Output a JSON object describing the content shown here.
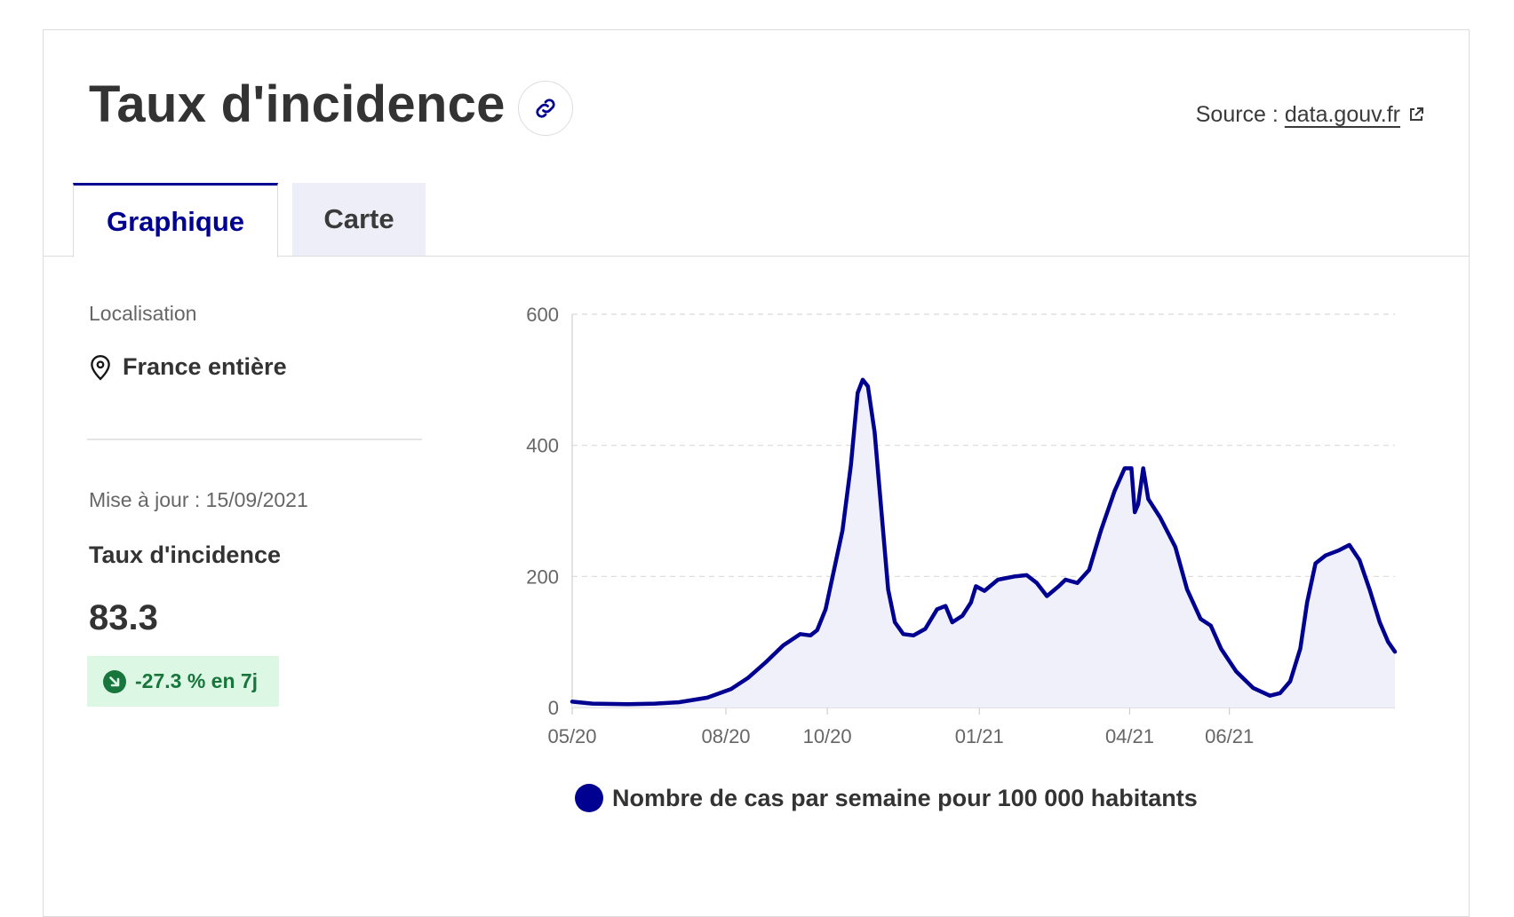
{
  "header": {
    "title": "Taux d'incidence",
    "source_label": "Source :",
    "source_link": "data.gouv.fr"
  },
  "tabs": [
    {
      "label": "Graphique",
      "active": true
    },
    {
      "label": "Carte",
      "active": false
    }
  ],
  "sidebar": {
    "location_label": "Localisation",
    "location_value": "France entière",
    "update_text": "Mise à jour : 15/09/2021",
    "indicator_label": "Taux d'incidence",
    "indicator_value": "83.3",
    "trend_text": "-27.3 % en 7j"
  },
  "colors": {
    "accent": "#000091",
    "trend_bg": "#dcf7e3",
    "trend_fg": "#18753c"
  },
  "chart_data": {
    "type": "line",
    "xlabel": "",
    "ylabel": "",
    "ylim": [
      0,
      600
    ],
    "yticks": [
      0,
      200,
      400,
      600
    ],
    "xticks": [
      "05/20",
      "08/20",
      "10/20",
      "01/21",
      "04/21",
      "06/21"
    ],
    "x_range": [
      "2020-05-13",
      "2021-09-12"
    ],
    "grid": true,
    "legend_position": "bottom",
    "series": [
      {
        "name": "Nombre de cas par semaine pour 100 000 habitants",
        "color": "#000091",
        "points": [
          [
            "2020-05-13",
            9
          ],
          [
            "2020-05-25",
            6
          ],
          [
            "2020-06-15",
            5
          ],
          [
            "2020-07-01",
            6
          ],
          [
            "2020-07-15",
            8
          ],
          [
            "2020-08-01",
            15
          ],
          [
            "2020-08-15",
            28
          ],
          [
            "2020-08-25",
            45
          ],
          [
            "2020-09-05",
            70
          ],
          [
            "2020-09-15",
            95
          ],
          [
            "2020-09-25",
            112
          ],
          [
            "2020-10-01",
            110
          ],
          [
            "2020-10-05",
            118
          ],
          [
            "2020-10-10",
            150
          ],
          [
            "2020-10-15",
            210
          ],
          [
            "2020-10-20",
            270
          ],
          [
            "2020-10-25",
            370
          ],
          [
            "2020-10-29",
            480
          ],
          [
            "2020-11-01",
            500
          ],
          [
            "2020-11-04",
            490
          ],
          [
            "2020-11-08",
            420
          ],
          [
            "2020-11-12",
            300
          ],
          [
            "2020-11-16",
            180
          ],
          [
            "2020-11-20",
            130
          ],
          [
            "2020-11-25",
            112
          ],
          [
            "2020-12-01",
            110
          ],
          [
            "2020-12-08",
            120
          ],
          [
            "2020-12-15",
            150
          ],
          [
            "2020-12-20",
            155
          ],
          [
            "2020-12-24",
            130
          ],
          [
            "2020-12-30",
            140
          ],
          [
            "2021-01-04",
            160
          ],
          [
            "2021-01-07",
            185
          ],
          [
            "2021-01-12",
            178
          ],
          [
            "2021-01-20",
            195
          ],
          [
            "2021-01-30",
            200
          ],
          [
            "2021-02-06",
            202
          ],
          [
            "2021-02-12",
            190
          ],
          [
            "2021-02-18",
            170
          ],
          [
            "2021-02-25",
            185
          ],
          [
            "2021-03-01",
            195
          ],
          [
            "2021-03-08",
            190
          ],
          [
            "2021-03-15",
            210
          ],
          [
            "2021-03-22",
            270
          ],
          [
            "2021-03-30",
            330
          ],
          [
            "2021-04-05",
            365
          ],
          [
            "2021-04-09",
            365
          ],
          [
            "2021-04-11",
            298
          ],
          [
            "2021-04-13",
            310
          ],
          [
            "2021-04-16",
            365
          ],
          [
            "2021-04-19",
            318
          ],
          [
            "2021-04-26",
            290
          ],
          [
            "2021-05-05",
            245
          ],
          [
            "2021-05-12",
            180
          ],
          [
            "2021-05-20",
            135
          ],
          [
            "2021-05-26",
            125
          ],
          [
            "2021-06-01",
            90
          ],
          [
            "2021-06-10",
            55
          ],
          [
            "2021-06-20",
            30
          ],
          [
            "2021-06-30",
            18
          ],
          [
            "2021-07-06",
            22
          ],
          [
            "2021-07-12",
            40
          ],
          [
            "2021-07-18",
            90
          ],
          [
            "2021-07-22",
            160
          ],
          [
            "2021-07-27",
            220
          ],
          [
            "2021-08-02",
            232
          ],
          [
            "2021-08-10",
            240
          ],
          [
            "2021-08-16",
            248
          ],
          [
            "2021-08-22",
            225
          ],
          [
            "2021-08-28",
            180
          ],
          [
            "2021-09-03",
            130
          ],
          [
            "2021-09-08",
            100
          ],
          [
            "2021-09-12",
            85
          ]
        ]
      }
    ]
  }
}
